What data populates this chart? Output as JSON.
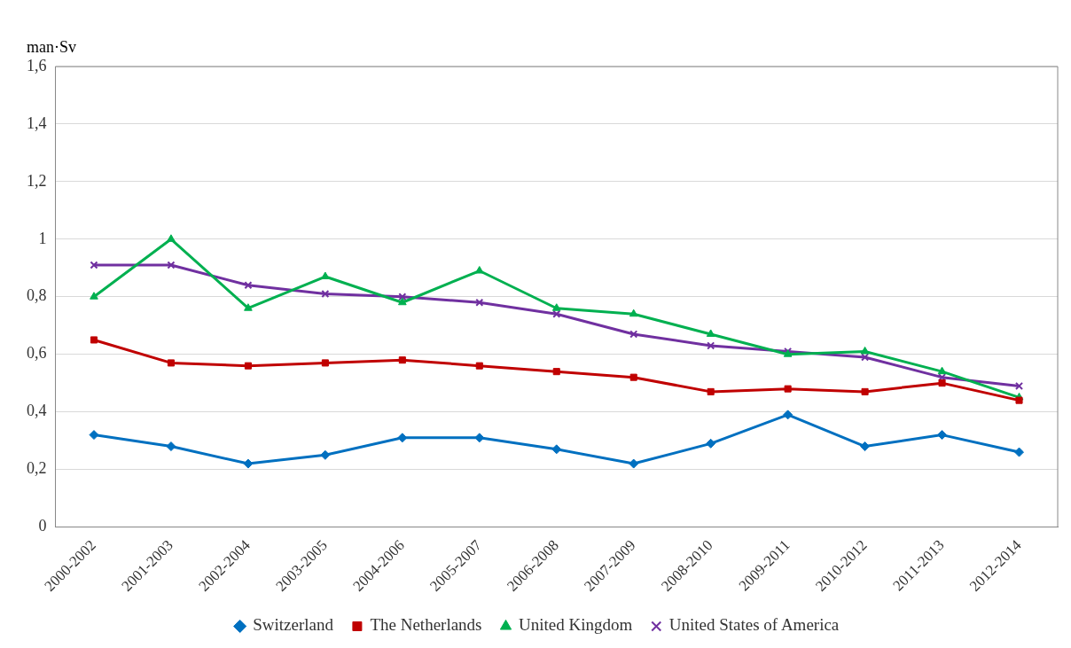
{
  "chart_data": {
    "type": "line",
    "ylabel": "man·Sv",
    "categories": [
      "2000-2002",
      "2001-2003",
      "2002-2004",
      "2003-2005",
      "2004-2006",
      "2005-2007",
      "2006-2008",
      "2007-2009",
      "2008-2010",
      "2009-2011",
      "2010-2012",
      "2011-2013",
      "2012-2014"
    ],
    "series": [
      {
        "name": "Switzerland",
        "color": "#0070c0",
        "marker": "diamond",
        "values": [
          0.32,
          0.28,
          0.22,
          0.25,
          0.31,
          0.31,
          0.27,
          0.22,
          0.29,
          0.39,
          0.28,
          0.32,
          0.26
        ]
      },
      {
        "name": "The Netherlands",
        "color": "#c00000",
        "marker": "square",
        "values": [
          0.65,
          0.57,
          0.56,
          0.57,
          0.58,
          0.56,
          0.54,
          0.52,
          0.47,
          0.48,
          0.47,
          0.5,
          0.44
        ]
      },
      {
        "name": "United Kingdom",
        "color": "#00b050",
        "marker": "triangle",
        "values": [
          0.8,
          1.0,
          0.76,
          0.87,
          0.78,
          0.89,
          0.76,
          0.74,
          0.67,
          0.6,
          0.61,
          0.54,
          0.45
        ]
      },
      {
        "name": "United States of America",
        "color": "#7030a0",
        "marker": "cross",
        "values": [
          0.91,
          0.91,
          0.84,
          0.81,
          0.8,
          0.78,
          0.74,
          0.67,
          0.63,
          0.61,
          0.59,
          0.52,
          0.49
        ]
      }
    ],
    "ylim": [
      0,
      1.6
    ],
    "yticks": [
      0,
      {
        "value": 0.2,
        "label": "0,2"
      },
      {
        "value": 0.4,
        "label": "0,4"
      },
      {
        "value": 0.6,
        "label": "0,6"
      },
      {
        "value": 0.8,
        "label": "0,8"
      },
      1,
      {
        "value": 1.2,
        "label": "1,2"
      },
      {
        "value": 1.4,
        "label": "1,4"
      },
      {
        "value": 1.6,
        "label": "1,6"
      }
    ],
    "grid": "y",
    "legend": "bottom",
    "line_style": "solid"
  }
}
